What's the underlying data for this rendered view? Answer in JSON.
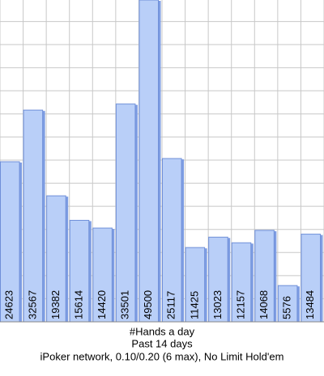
{
  "chart_data": {
    "type": "bar",
    "title": "#Hands a day",
    "subtitle": "Past 14 days",
    "caption": "iPoker network, 0.10/0.20 (6 max), No Limit Hold'em",
    "values": [
      24623,
      32567,
      19382,
      15614,
      14420,
      33501,
      49500,
      25117,
      11425,
      13023,
      12157,
      14068,
      5576,
      13484
    ],
    "color": "#b9cff8",
    "ylim": [
      0,
      49500
    ],
    "grid": true
  }
}
